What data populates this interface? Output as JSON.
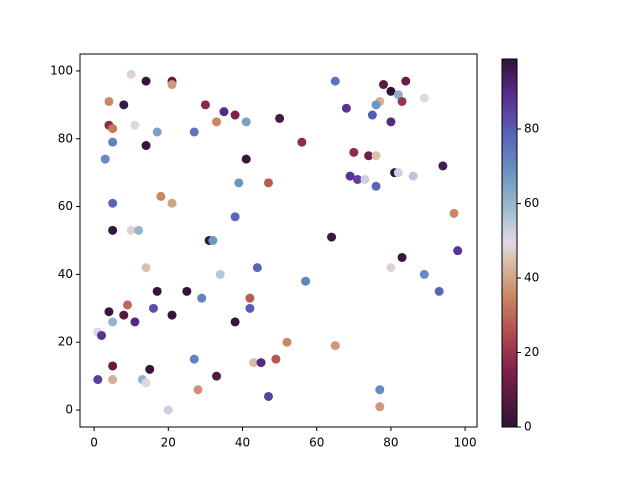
{
  "chart_data": {
    "type": "scatter",
    "x": [
      10,
      14,
      21,
      21,
      4,
      8,
      30,
      65,
      78,
      84,
      80,
      82,
      77,
      76,
      83,
      89,
      68,
      35,
      38,
      33,
      41,
      50,
      75,
      80,
      4,
      5,
      11,
      17,
      27,
      5,
      14,
      56,
      3,
      41,
      70,
      74,
      76,
      94,
      81,
      82,
      86,
      69,
      71,
      73,
      76,
      39,
      47,
      18,
      21,
      5,
      38,
      97,
      5,
      10,
      12,
      31,
      32,
      64,
      98,
      83,
      14,
      44,
      80,
      34,
      89,
      57,
      17,
      25,
      93,
      29,
      42,
      9,
      4,
      16,
      42,
      8,
      21,
      11,
      5,
      38,
      1,
      2,
      52,
      65,
      27,
      49,
      43,
      45,
      5,
      15,
      33,
      1,
      5,
      13,
      14,
      77,
      28,
      20,
      77,
      47
    ],
    "y": [
      99,
      97,
      97,
      96,
      91,
      90,
      90,
      97,
      96,
      97,
      94,
      93,
      91,
      90,
      91,
      92,
      89,
      88,
      87,
      85,
      85,
      86,
      87,
      85,
      84,
      83,
      84,
      82,
      82,
      79,
      78,
      79,
      74,
      74,
      76,
      75,
      75,
      72,
      70,
      70,
      69,
      69,
      68,
      68,
      66,
      67,
      67,
      63,
      61,
      61,
      57,
      58,
      53,
      53,
      53,
      50,
      50,
      51,
      47,
      45,
      42,
      42,
      42,
      40,
      40,
      38,
      35,
      35,
      35,
      33,
      33,
      31,
      29,
      30,
      30,
      28,
      28,
      26,
      26,
      26,
      23,
      22,
      20,
      19,
      15,
      15,
      14,
      14,
      13,
      12,
      10,
      9,
      9,
      9,
      8,
      6,
      6,
      0,
      1,
      4
    ],
    "c": [
      48,
      2,
      10,
      38,
      35,
      97,
      17,
      75,
      8,
      12,
      99,
      62,
      42,
      68,
      20,
      50,
      88,
      90,
      15,
      35,
      65,
      5,
      80,
      90,
      18,
      33,
      50,
      65,
      75,
      72,
      2,
      18,
      70,
      2,
      18,
      12,
      45,
      95,
      99,
      52,
      55,
      88,
      85,
      52,
      78,
      68,
      28,
      35,
      40,
      78,
      78,
      35,
      98,
      48,
      60,
      2,
      68,
      3,
      88,
      2,
      45,
      78,
      48,
      55,
      70,
      72,
      2,
      1,
      78,
      72,
      28,
      30,
      3,
      82,
      80,
      8,
      2,
      90,
      60,
      2,
      50,
      88,
      35,
      38,
      72,
      27,
      44,
      90,
      10,
      2,
      7,
      85,
      42,
      60,
      50,
      70,
      37,
      52,
      38,
      85
    ],
    "xlim": [
      -3.8,
      103.2
    ],
    "ylim": [
      -5,
      105
    ],
    "xticks": [
      0,
      20,
      40,
      60,
      80,
      100
    ],
    "yticks": [
      0,
      20,
      40,
      60,
      80,
      100
    ],
    "clim": [
      0,
      98.8
    ],
    "cticks": [
      0,
      20,
      40,
      60,
      80
    ],
    "colormap": [
      [
        0,
        "#2f1436"
      ],
      [
        0.15,
        "#7d1f4a"
      ],
      [
        0.25,
        "#b0494f"
      ],
      [
        0.35,
        "#c88460"
      ],
      [
        0.45,
        "#d9bfaa"
      ],
      [
        0.5,
        "#e2d9e2"
      ],
      [
        0.6,
        "#9ab8ce"
      ],
      [
        0.7,
        "#6690c2"
      ],
      [
        0.8,
        "#5a60b9"
      ],
      [
        0.9,
        "#5a2d8f"
      ],
      [
        1,
        "#2f1436"
      ]
    ]
  }
}
